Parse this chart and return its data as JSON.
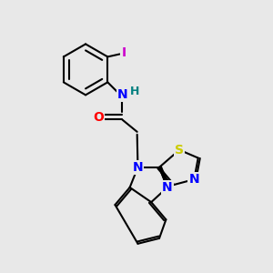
{
  "background_color": "#e8e8e8",
  "bond_color": "#000000",
  "bond_width": 1.5,
  "atom_colors": {
    "N": "#0000ff",
    "O": "#ff0000",
    "S": "#cccc00",
    "I": "#cc00cc",
    "H": "#008080",
    "C": "#000000"
  },
  "font_size": 9
}
